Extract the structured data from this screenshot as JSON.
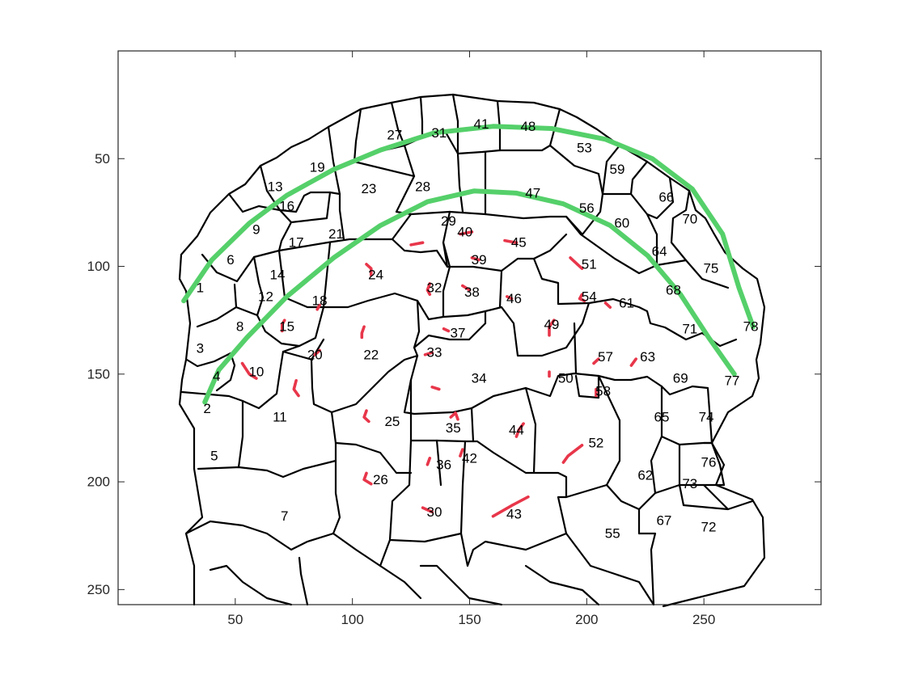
{
  "chart_data": {
    "type": "scatter",
    "title": "",
    "xlabel": "",
    "ylabel": "",
    "xlim": [
      0,
      300
    ],
    "ylim": [
      0,
      257
    ],
    "y_reversed": true,
    "grid": false,
    "x_ticks": [
      50,
      100,
      150,
      200,
      250
    ],
    "y_ticks": [
      50,
      100,
      150,
      200,
      250
    ],
    "colors": {
      "outline": "#000000",
      "arc": "#55d06a",
      "stroke_marks": "#e8364a",
      "axis": "#262626"
    },
    "region_labels": [
      {
        "label": "1",
        "x": 35,
        "y": 110
      },
      {
        "label": "2",
        "x": 38,
        "y": 166
      },
      {
        "label": "3",
        "x": 35,
        "y": 138
      },
      {
        "label": "4",
        "x": 42,
        "y": 151
      },
      {
        "label": "5",
        "x": 41,
        "y": 188
      },
      {
        "label": "6",
        "x": 48,
        "y": 97
      },
      {
        "label": "7",
        "x": 71,
        "y": 216
      },
      {
        "label": "8",
        "x": 52,
        "y": 128
      },
      {
        "label": "9",
        "x": 59,
        "y": 83
      },
      {
        "label": "10",
        "x": 59,
        "y": 149
      },
      {
        "label": "11",
        "x": 69,
        "y": 170
      },
      {
        "label": "12",
        "x": 63,
        "y": 114
      },
      {
        "label": "13",
        "x": 67,
        "y": 63
      },
      {
        "label": "14",
        "x": 68,
        "y": 104
      },
      {
        "label": "15",
        "x": 72,
        "y": 128
      },
      {
        "label": "16",
        "x": 72,
        "y": 72
      },
      {
        "label": "17",
        "x": 76,
        "y": 89
      },
      {
        "label": "18",
        "x": 86,
        "y": 116
      },
      {
        "label": "19",
        "x": 85,
        "y": 54
      },
      {
        "label": "20",
        "x": 84,
        "y": 141
      },
      {
        "label": "21",
        "x": 93,
        "y": 85
      },
      {
        "label": "22",
        "x": 108,
        "y": 141
      },
      {
        "label": "23",
        "x": 107,
        "y": 64
      },
      {
        "label": "24",
        "x": 110,
        "y": 104
      },
      {
        "label": "25",
        "x": 117,
        "y": 172
      },
      {
        "label": "26",
        "x": 112,
        "y": 199
      },
      {
        "label": "27",
        "x": 118,
        "y": 39
      },
      {
        "label": "28",
        "x": 130,
        "y": 63
      },
      {
        "label": "29",
        "x": 141,
        "y": 79
      },
      {
        "label": "30",
        "x": 135,
        "y": 214
      },
      {
        "label": "31",
        "x": 137,
        "y": 38
      },
      {
        "label": "32",
        "x": 135,
        "y": 110
      },
      {
        "label": "33",
        "x": 135,
        "y": 140
      },
      {
        "label": "34",
        "x": 154,
        "y": 152
      },
      {
        "label": "35",
        "x": 143,
        "y": 175
      },
      {
        "label": "36",
        "x": 139,
        "y": 192
      },
      {
        "label": "37",
        "x": 145,
        "y": 131
      },
      {
        "label": "38",
        "x": 151,
        "y": 112
      },
      {
        "label": "39",
        "x": 154,
        "y": 97
      },
      {
        "label": "40",
        "x": 148,
        "y": 84
      },
      {
        "label": "41",
        "x": 155,
        "y": 34
      },
      {
        "label": "42",
        "x": 150,
        "y": 189
      },
      {
        "label": "43",
        "x": 169,
        "y": 215
      },
      {
        "label": "44",
        "x": 170,
        "y": 176
      },
      {
        "label": "45",
        "x": 171,
        "y": 89
      },
      {
        "label": "46",
        "x": 169,
        "y": 115
      },
      {
        "label": "47",
        "x": 177,
        "y": 66
      },
      {
        "label": "48",
        "x": 175,
        "y": 35
      },
      {
        "label": "49",
        "x": 185,
        "y": 127
      },
      {
        "label": "50",
        "x": 191,
        "y": 152
      },
      {
        "label": "51",
        "x": 201,
        "y": 99
      },
      {
        "label": "52",
        "x": 204,
        "y": 182
      },
      {
        "label": "53",
        "x": 199,
        "y": 45
      },
      {
        "label": "54",
        "x": 201,
        "y": 114
      },
      {
        "label": "55",
        "x": 211,
        "y": 224
      },
      {
        "label": "56",
        "x": 200,
        "y": 73
      },
      {
        "label": "57",
        "x": 208,
        "y": 142
      },
      {
        "label": "58",
        "x": 207,
        "y": 158
      },
      {
        "label": "59",
        "x": 213,
        "y": 55
      },
      {
        "label": "60",
        "x": 215,
        "y": 80
      },
      {
        "label": "61",
        "x": 217,
        "y": 117
      },
      {
        "label": "62",
        "x": 225,
        "y": 197
      },
      {
        "label": "63",
        "x": 226,
        "y": 142
      },
      {
        "label": "64",
        "x": 231,
        "y": 93
      },
      {
        "label": "65",
        "x": 232,
        "y": 170
      },
      {
        "label": "66",
        "x": 234,
        "y": 68
      },
      {
        "label": "67",
        "x": 233,
        "y": 218
      },
      {
        "label": "68",
        "x": 237,
        "y": 111
      },
      {
        "label": "69",
        "x": 240,
        "y": 152
      },
      {
        "label": "70",
        "x": 244,
        "y": 78
      },
      {
        "label": "71",
        "x": 244,
        "y": 129
      },
      {
        "label": "72",
        "x": 252,
        "y": 221
      },
      {
        "label": "73",
        "x": 244,
        "y": 201
      },
      {
        "label": "74",
        "x": 251,
        "y": 170
      },
      {
        "label": "75",
        "x": 253,
        "y": 101
      },
      {
        "label": "76",
        "x": 252,
        "y": 191
      },
      {
        "label": "77",
        "x": 262,
        "y": 153
      },
      {
        "label": "78",
        "x": 270,
        "y": 128
      }
    ],
    "series": [
      {
        "type": "line",
        "points": [
          [
            28,
            116
          ],
          [
            40,
            97
          ],
          [
            56,
            80
          ],
          [
            72,
            67
          ],
          [
            92,
            55
          ],
          [
            112,
            46
          ],
          [
            135,
            38
          ],
          [
            160,
            35
          ],
          [
            185,
            36
          ],
          [
            208,
            41
          ],
          [
            228,
            50
          ],
          [
            245,
            64
          ],
          [
            258,
            85
          ],
          [
            265,
            110
          ],
          [
            271,
            128
          ]
        ]
      },
      {
        "type": "line",
        "points": [
          [
            37,
            163
          ],
          [
            43,
            148
          ],
          [
            55,
            133
          ],
          [
            72,
            114
          ],
          [
            92,
            96
          ],
          [
            112,
            81
          ],
          [
            132,
            70
          ],
          [
            152,
            65
          ],
          [
            170,
            66
          ],
          [
            190,
            71
          ],
          [
            210,
            81
          ],
          [
            226,
            95
          ],
          [
            240,
            113
          ],
          [
            252,
            133
          ],
          [
            263,
            150
          ]
        ]
      },
      {
        "type": "line",
        "points": [
          [
            125,
            90
          ],
          [
            130,
            89
          ]
        ]
      },
      {
        "type": "line",
        "points": [
          [
            106,
            99
          ],
          [
            108,
            101
          ],
          [
            108,
            104
          ]
        ]
      },
      {
        "type": "line",
        "points": [
          [
            146,
            85
          ],
          [
            151,
            84
          ]
        ]
      },
      {
        "type": "line",
        "points": [
          [
            165,
            88
          ],
          [
            170,
            89
          ]
        ]
      },
      {
        "type": "line",
        "points": [
          [
            151,
            96
          ],
          [
            154,
            97
          ]
        ]
      },
      {
        "type": "line",
        "points": [
          [
            193,
            96
          ],
          [
            196,
            99
          ],
          [
            198,
            101
          ]
        ]
      },
      {
        "type": "line",
        "points": [
          [
            133,
            108
          ],
          [
            132,
            111
          ],
          [
            133,
            113
          ]
        ]
      },
      {
        "type": "line",
        "points": [
          [
            147,
            109
          ],
          [
            150,
            111
          ]
        ]
      },
      {
        "type": "line",
        "points": [
          [
            166,
            114
          ],
          [
            168,
            115
          ]
        ]
      },
      {
        "type": "line",
        "points": [
          [
            198,
            113
          ],
          [
            197,
            115
          ],
          [
            199,
            116
          ]
        ]
      },
      {
        "type": "line",
        "points": [
          [
            208,
            117
          ],
          [
            210,
            119
          ]
        ]
      },
      {
        "type": "line",
        "points": [
          [
            86,
            118
          ],
          [
            85,
            120
          ]
        ]
      },
      {
        "type": "line",
        "points": [
          [
            71,
            125
          ],
          [
            70,
            127
          ],
          [
            70,
            130
          ]
        ]
      },
      {
        "type": "line",
        "points": [
          [
            105,
            128
          ],
          [
            104,
            131
          ],
          [
            104,
            133
          ]
        ]
      },
      {
        "type": "line",
        "points": [
          [
            139,
            129
          ],
          [
            141,
            130
          ]
        ]
      },
      {
        "type": "line",
        "points": [
          [
            186,
            125
          ],
          [
            184,
            128
          ],
          [
            184,
            132
          ]
        ]
      },
      {
        "type": "line",
        "points": [
          [
            86,
            139
          ],
          [
            84,
            141
          ]
        ]
      },
      {
        "type": "line",
        "points": [
          [
            131,
            141
          ],
          [
            134,
            140
          ]
        ]
      },
      {
        "type": "line",
        "points": [
          [
            205,
            143
          ],
          [
            203,
            145
          ]
        ]
      },
      {
        "type": "line",
        "points": [
          [
            221,
            143
          ],
          [
            219,
            146
          ]
        ]
      },
      {
        "type": "line",
        "points": [
          [
            53,
            145
          ],
          [
            56,
            150
          ],
          [
            59,
            152
          ]
        ]
      },
      {
        "type": "line",
        "points": [
          [
            76,
            153
          ],
          [
            75,
            157
          ],
          [
            77,
            160
          ]
        ]
      },
      {
        "type": "line",
        "points": [
          [
            184,
            149
          ],
          [
            184,
            151
          ]
        ]
      },
      {
        "type": "line",
        "points": [
          [
            134,
            156
          ],
          [
            137,
            157
          ]
        ]
      },
      {
        "type": "line",
        "points": [
          [
            204,
            157
          ],
          [
            204,
            160
          ]
        ]
      },
      {
        "type": "line",
        "points": [
          [
            106,
            167
          ],
          [
            105,
            170
          ],
          [
            107,
            172
          ]
        ]
      },
      {
        "type": "line",
        "points": [
          [
            142,
            170
          ],
          [
            144,
            168
          ],
          [
            145,
            171
          ]
        ]
      },
      {
        "type": "line",
        "points": [
          [
            173,
            173
          ],
          [
            171,
            176
          ],
          [
            170,
            179
          ]
        ]
      },
      {
        "type": "line",
        "points": [
          [
            198,
            183
          ],
          [
            192,
            188
          ],
          [
            190,
            191
          ]
        ]
      },
      {
        "type": "line",
        "points": [
          [
            147,
            185
          ],
          [
            146,
            188
          ]
        ]
      },
      {
        "type": "line",
        "points": [
          [
            133,
            189
          ],
          [
            132,
            192
          ]
        ]
      },
      {
        "type": "line",
        "points": [
          [
            106,
            196
          ],
          [
            105,
            199
          ],
          [
            108,
            201
          ]
        ]
      },
      {
        "type": "line",
        "points": [
          [
            130,
            212
          ],
          [
            134,
            214
          ]
        ]
      },
      {
        "type": "line",
        "points": [
          [
            175,
            207
          ],
          [
            168,
            211
          ],
          [
            160,
            216
          ]
        ]
      }
    ]
  }
}
